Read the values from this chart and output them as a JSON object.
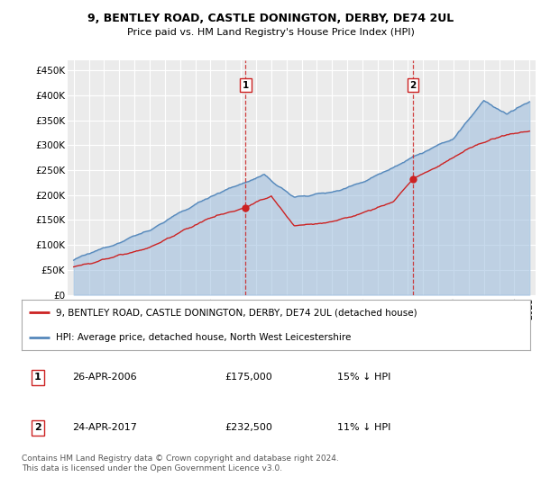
{
  "title": "9, BENTLEY ROAD, CASTLE DONINGTON, DERBY, DE74 2UL",
  "subtitle": "Price paid vs. HM Land Registry's House Price Index (HPI)",
  "ylim": [
    0,
    470000
  ],
  "yticks": [
    0,
    50000,
    100000,
    150000,
    200000,
    250000,
    300000,
    350000,
    400000,
    450000
  ],
  "ytick_labels": [
    "£0",
    "£50K",
    "£100K",
    "£150K",
    "£200K",
    "£250K",
    "£300K",
    "£350K",
    "£400K",
    "£450K"
  ],
  "background_color": "#ffffff",
  "plot_bg_color": "#ebebeb",
  "grid_color": "#ffffff",
  "hpi_color": "#5588bb",
  "price_color": "#cc2222",
  "hpi_fill_color": "#99bbdd",
  "transaction1": {
    "label": "1",
    "date": "26-APR-2006",
    "price": 175000,
    "pct": "15% ↓ HPI",
    "x_year": 2006.32
  },
  "transaction2": {
    "label": "2",
    "date": "24-APR-2017",
    "price": 232500,
    "pct": "11% ↓ HPI",
    "x_year": 2017.32
  },
  "legend1": "9, BENTLEY ROAD, CASTLE DONINGTON, DERBY, DE74 2UL (detached house)",
  "legend2": "HPI: Average price, detached house, North West Leicestershire",
  "footnote": "Contains HM Land Registry data © Crown copyright and database right 2024.\nThis data is licensed under the Open Government Licence v3.0.",
  "xlim_left": 1994.6,
  "xlim_right": 2025.4
}
